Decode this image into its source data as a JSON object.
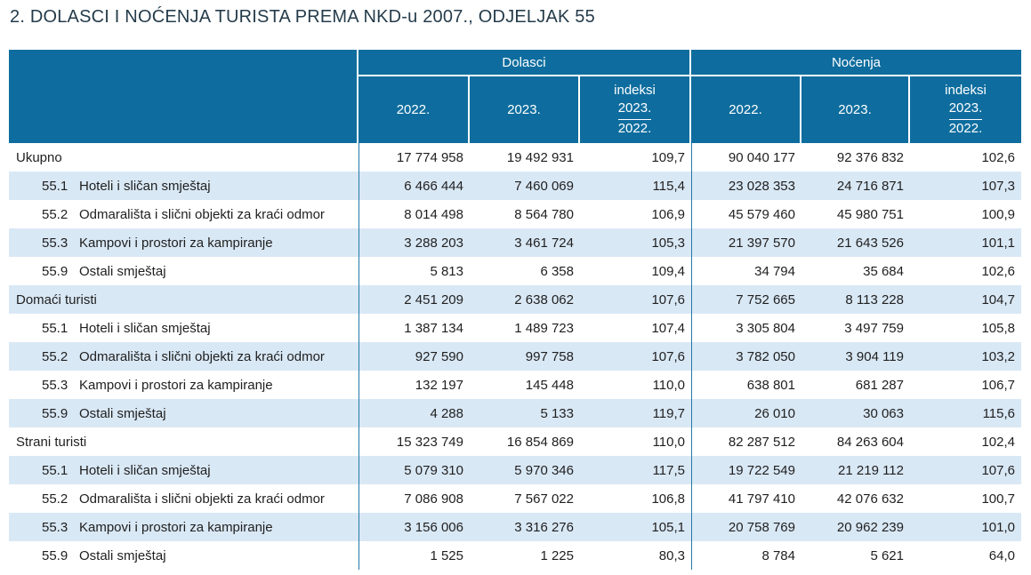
{
  "page_title": "2. DOLASCI I NOĆENJA TURISTA PREMA NKD-u 2007., ODJELJAK 55",
  "table": {
    "column_groups": [
      {
        "label": "Dolasci"
      },
      {
        "label": "Noćenja"
      }
    ],
    "subheaders": {
      "year_2022": "2022.",
      "year_2023": "2023.",
      "index_label": "indeksi",
      "index_numerator": "2023.",
      "index_denominator": "2022."
    },
    "rows": [
      {
        "code": "",
        "label": "Ukupno",
        "level": 0,
        "values": [
          "17 774 958",
          "19 492 931",
          "109,7",
          "90 040 177",
          "92 376 832",
          "102,6"
        ]
      },
      {
        "code": "55.1",
        "label": "Hoteli i sličan smještaj",
        "level": 1,
        "values": [
          "6 466 444",
          "7 460 069",
          "115,4",
          "23 028 353",
          "24 716 871",
          "107,3"
        ]
      },
      {
        "code": "55.2",
        "label": "Odmarališta i slični objekti za kraći odmor",
        "level": 1,
        "values": [
          "8 014 498",
          "8 564 780",
          "106,9",
          "45 579 460",
          "45 980 751",
          "100,9"
        ]
      },
      {
        "code": "55.3",
        "label": "Kampovi i prostori za kampiranje",
        "level": 1,
        "values": [
          "3 288 203",
          "3 461 724",
          "105,3",
          "21 397 570",
          "21 643 526",
          "101,1"
        ]
      },
      {
        "code": "55.9",
        "label": "Ostali smještaj",
        "level": 1,
        "values": [
          "5 813",
          "6 358",
          "109,4",
          "34 794",
          "35 684",
          "102,6"
        ]
      },
      {
        "code": "",
        "label": "Domaći turisti",
        "level": 0,
        "values": [
          "2 451 209",
          "2 638 062",
          "107,6",
          "7 752 665",
          "8 113 228",
          "104,7"
        ]
      },
      {
        "code": "55.1",
        "label": "Hoteli i sličan smještaj",
        "level": 1,
        "values": [
          "1 387 134",
          "1 489 723",
          "107,4",
          "3 305 804",
          "3 497 759",
          "105,8"
        ]
      },
      {
        "code": "55.2",
        "label": "Odmarališta i slični objekti za kraći odmor",
        "level": 1,
        "values": [
          "927 590",
          "997 758",
          "107,6",
          "3 782 050",
          "3 904 119",
          "103,2"
        ]
      },
      {
        "code": "55.3",
        "label": "Kampovi i prostori za kampiranje",
        "level": 1,
        "values": [
          "132 197",
          "145 448",
          "110,0",
          "638 801",
          "681 287",
          "106,7"
        ]
      },
      {
        "code": "55.9",
        "label": "Ostali smještaj",
        "level": 1,
        "values": [
          "4 288",
          "5 133",
          "119,7",
          "26 010",
          "30 063",
          "115,6"
        ]
      },
      {
        "code": "",
        "label": "Strani turisti",
        "level": 0,
        "values": [
          "15 323 749",
          "16 854 869",
          "110,0",
          "82 287 512",
          "84 263 604",
          "102,4"
        ]
      },
      {
        "code": "55.1",
        "label": "Hoteli i sličan smještaj",
        "level": 1,
        "values": [
          "5 079 310",
          "5 970 346",
          "117,5",
          "19 722 549",
          "21 219 112",
          "107,6"
        ]
      },
      {
        "code": "55.2",
        "label": "Odmarališta i slični objekti za kraći odmor",
        "level": 1,
        "values": [
          "7 086 908",
          "7 567 022",
          "106,8",
          "41 797 410",
          "42 076 632",
          "100,7"
        ]
      },
      {
        "code": "55.3",
        "label": "Kampovi i prostori za kampiranje",
        "level": 1,
        "values": [
          "3 156 006",
          "3 316 276",
          "105,1",
          "20 758 769",
          "20 962 239",
          "101,0"
        ]
      },
      {
        "code": "55.9",
        "label": "Ostali smještaj",
        "level": 1,
        "values": [
          "1 525",
          "1 225",
          "80,3",
          "8 784",
          "5 621",
          "64,0"
        ]
      }
    ]
  },
  "colors": {
    "header_bg": "#0E6D9E",
    "stripe_bg": "#D9E8F5",
    "separator": "#2478A6",
    "title": "#253C4B",
    "header_text": "#FFFFFF",
    "body_text": "#1F1F1F"
  },
  "chart_data": {
    "type": "table",
    "title": "2. DOLASCI I NOĆENJA TURISTA PREMA NKD-u 2007., ODJELJAK 55",
    "column_groups": [
      "Dolasci",
      "Noćenja"
    ],
    "columns": [
      "Dolasci 2022.",
      "Dolasci 2023.",
      "Dolasci indeksi 2023./2022.",
      "Noćenja 2022.",
      "Noćenja 2023.",
      "Noćenja indeksi 2023./2022."
    ],
    "rows": [
      {
        "section": "Ukupno",
        "code": null,
        "label": "Ukupno",
        "dolasci_2022": 17774958,
        "dolasci_2023": 19492931,
        "dolasci_indeks": 109.7,
        "nocenja_2022": 90040177,
        "nocenja_2023": 92376832,
        "nocenja_indeks": 102.6
      },
      {
        "section": "Ukupno",
        "code": "55.1",
        "label": "Hoteli i sličan smještaj",
        "dolasci_2022": 6466444,
        "dolasci_2023": 7460069,
        "dolasci_indeks": 115.4,
        "nocenja_2022": 23028353,
        "nocenja_2023": 24716871,
        "nocenja_indeks": 107.3
      },
      {
        "section": "Ukupno",
        "code": "55.2",
        "label": "Odmarališta i slični objekti za kraći odmor",
        "dolasci_2022": 8014498,
        "dolasci_2023": 8564780,
        "dolasci_indeks": 106.9,
        "nocenja_2022": 45579460,
        "nocenja_2023": 45980751,
        "nocenja_indeks": 100.9
      },
      {
        "section": "Ukupno",
        "code": "55.3",
        "label": "Kampovi i prostori za kampiranje",
        "dolasci_2022": 3288203,
        "dolasci_2023": 3461724,
        "dolasci_indeks": 105.3,
        "nocenja_2022": 21397570,
        "nocenja_2023": 21643526,
        "nocenja_indeks": 101.1
      },
      {
        "section": "Ukupno",
        "code": "55.9",
        "label": "Ostali smještaj",
        "dolasci_2022": 5813,
        "dolasci_2023": 6358,
        "dolasci_indeks": 109.4,
        "nocenja_2022": 34794,
        "nocenja_2023": 35684,
        "nocenja_indeks": 102.6
      },
      {
        "section": "Domaći turisti",
        "code": null,
        "label": "Domaći turisti",
        "dolasci_2022": 2451209,
        "dolasci_2023": 2638062,
        "dolasci_indeks": 107.6,
        "nocenja_2022": 7752665,
        "nocenja_2023": 8113228,
        "nocenja_indeks": 104.7
      },
      {
        "section": "Domaći turisti",
        "code": "55.1",
        "label": "Hoteli i sličan smještaj",
        "dolasci_2022": 1387134,
        "dolasci_2023": 1489723,
        "dolasci_indeks": 107.4,
        "nocenja_2022": 3305804,
        "nocenja_2023": 3497759,
        "nocenja_indeks": 105.8
      },
      {
        "section": "Domaći turisti",
        "code": "55.2",
        "label": "Odmarališta i slični objekti za kraći odmor",
        "dolasci_2022": 927590,
        "dolasci_2023": 997758,
        "dolasci_indeks": 107.6,
        "nocenja_2022": 3782050,
        "nocenja_2023": 3904119,
        "nocenja_indeks": 103.2
      },
      {
        "section": "Domaći turisti",
        "code": "55.3",
        "label": "Kampovi i prostori za kampiranje",
        "dolasci_2022": 132197,
        "dolasci_2023": 145448,
        "dolasci_indeks": 110.0,
        "nocenja_2022": 638801,
        "nocenja_2023": 681287,
        "nocenja_indeks": 106.7
      },
      {
        "section": "Domaći turisti",
        "code": "55.9",
        "label": "Ostali smještaj",
        "dolasci_2022": 4288,
        "dolasci_2023": 5133,
        "dolasci_indeks": 119.7,
        "nocenja_2022": 26010,
        "nocenja_2023": 30063,
        "nocenja_indeks": 115.6
      },
      {
        "section": "Strani turisti",
        "code": null,
        "label": "Strani turisti",
        "dolasci_2022": 15323749,
        "dolasci_2023": 16854869,
        "dolasci_indeks": 110.0,
        "nocenja_2022": 82287512,
        "nocenja_2023": 84263604,
        "nocenja_indeks": 102.4
      },
      {
        "section": "Strani turisti",
        "code": "55.1",
        "label": "Hoteli i sličan smještaj",
        "dolasci_2022": 5079310,
        "dolasci_2023": 5970346,
        "dolasci_indeks": 117.5,
        "nocenja_2022": 19722549,
        "nocenja_2023": 21219112,
        "nocenja_indeks": 107.6
      },
      {
        "section": "Strani turisti",
        "code": "55.2",
        "label": "Odmarališta i slični objekti za kraći odmor",
        "dolasci_2022": 7086908,
        "dolasci_2023": 7567022,
        "dolasci_indeks": 106.8,
        "nocenja_2022": 41797410,
        "nocenja_2023": 42076632,
        "nocenja_indeks": 100.7
      },
      {
        "section": "Strani turisti",
        "code": "55.3",
        "label": "Kampovi i prostori za kampiranje",
        "dolasci_2022": 3156006,
        "dolasci_2023": 3316276,
        "dolasci_indeks": 105.1,
        "nocenja_2022": 20758769,
        "nocenja_2023": 20962239,
        "nocenja_indeks": 101.0
      },
      {
        "section": "Strani turisti",
        "code": "55.9",
        "label": "Ostali smještaj",
        "dolasci_2022": 1525,
        "dolasci_2023": 1225,
        "dolasci_indeks": 80.3,
        "nocenja_2022": 8784,
        "nocenja_2023": 5621,
        "nocenja_indeks": 64.0
      }
    ]
  }
}
